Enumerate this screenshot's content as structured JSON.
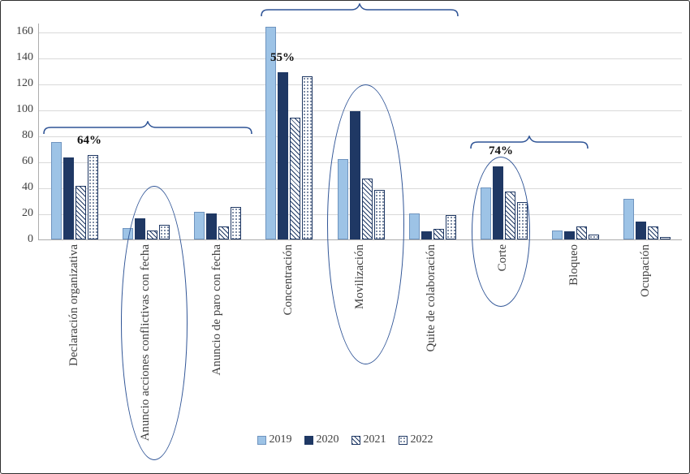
{
  "colors": {
    "c2019": "#9DC3E6",
    "navy": "#1F3864",
    "ann": "#2F5496",
    "grid": "#D9D9D9",
    "axis": "#ACACAC",
    "text": "#3F3F3F"
  },
  "chart_data": {
    "type": "bar",
    "categories": [
      "Declaración organizativa",
      "Anuncio acciones conflictivas con fecha",
      "Anuncio de paro con fecha",
      "Concentración",
      "Movilización",
      "Quite de colaboración",
      "Corte",
      "Bloqueo",
      "Ocupación"
    ],
    "series": [
      {
        "name": "2019",
        "style": "s2019",
        "values": [
          75,
          9,
          21,
          164,
          62,
          20,
          40,
          7,
          31
        ]
      },
      {
        "name": "2020",
        "style": "s2020",
        "values": [
          63,
          16,
          20,
          129,
          99,
          6,
          56,
          6,
          14
        ]
      },
      {
        "name": "2021",
        "style": "s2021",
        "values": [
          41,
          7,
          10,
          94,
          47,
          8,
          37,
          10,
          10
        ]
      },
      {
        "name": "2022",
        "style": "s2022",
        "values": [
          65,
          11,
          25,
          126,
          38,
          19,
          29,
          4,
          2
        ]
      }
    ],
    "ylim": [
      0,
      160
    ],
    "ytick_step": 20,
    "grid": true,
    "legend_position": "bottom",
    "annotations": [
      {
        "text": "64%",
        "target": "brace over Declaración organizativa – Anuncio de paro con fecha"
      },
      {
        "text": "55%",
        "target": "brace over Concentración – Quite de colaboración"
      },
      {
        "text": "74%",
        "target": "brace over Corte – Bloqueo"
      },
      {
        "type": "ellipse",
        "target": "Anuncio acciones conflictivas con fecha"
      },
      {
        "type": "ellipse",
        "target": "Movilización"
      },
      {
        "type": "ellipse",
        "target": "Corte"
      }
    ]
  },
  "legend": {
    "items": [
      {
        "label": "2019"
      },
      {
        "label": "2020"
      },
      {
        "label": "2021"
      },
      {
        "label": "2022"
      }
    ]
  }
}
